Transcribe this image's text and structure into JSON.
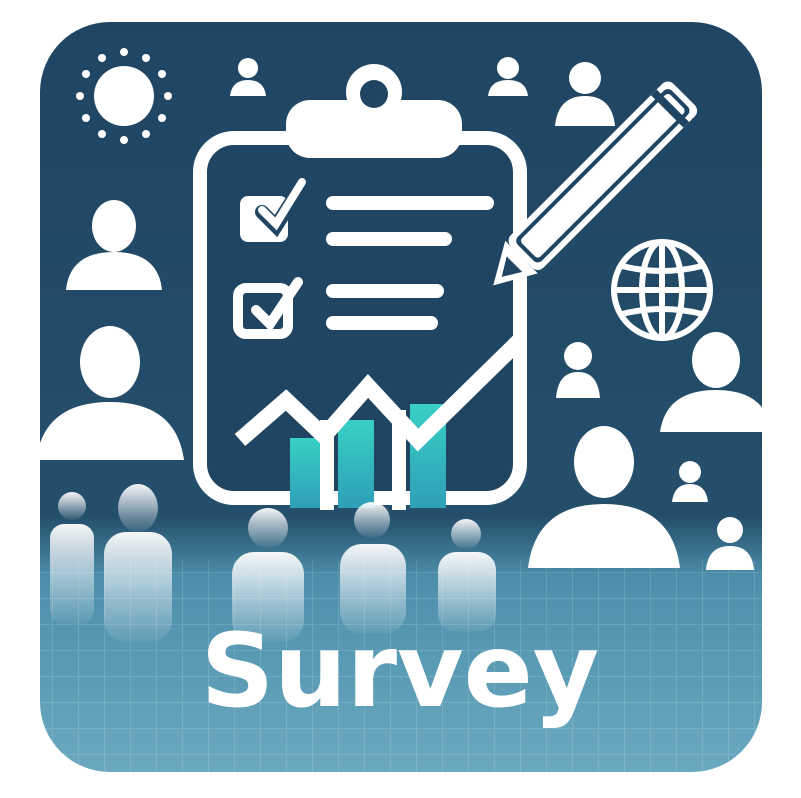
{
  "icon": {
    "label": "Survey",
    "colors": {
      "background_dark": "#1f4563",
      "background_light": "#5f9fb8",
      "foreground": "#ffffff",
      "accent_teal": "#2fc3c0",
      "accent_green": "#45d8b6"
    },
    "elements": [
      "sun-icon",
      "clipboard-icon",
      "checkbox-icon",
      "pencil-icon",
      "globe-icon",
      "chart-icon",
      "person-icon"
    ]
  }
}
